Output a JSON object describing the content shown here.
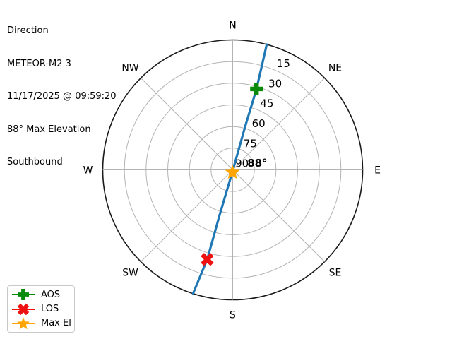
{
  "header": {
    "title": "Direction",
    "satellite": "METEOR-M2 3",
    "timestamp": "11/17/2025 @ 09:59:20",
    "max_elevation": "88° Max Elevation",
    "direction": "Southbound"
  },
  "chart_data": {
    "type": "polar_track",
    "title": "Direction",
    "compass_labels": [
      "N",
      "NE",
      "E",
      "SE",
      "S",
      "SW",
      "W",
      "NW"
    ],
    "elevation_rings_deg": [
      15,
      30,
      45,
      60,
      75
    ],
    "elevation_tick_values": [
      15,
      30,
      45,
      60,
      75,
      90
    ],
    "elevation_tick_labels": [
      "15",
      "30",
      "45",
      "60",
      "75",
      "90"
    ],
    "rlabel_azimuth_deg": 22.5,
    "elevation_range": [
      0,
      90
    ],
    "track": {
      "name": "satellite-pass-track",
      "points_az_el": [
        [
          15.2,
          0
        ],
        [
          16.4,
          31.6
        ],
        [
          16.0,
          58.5
        ],
        [
          185.0,
          89.0
        ],
        [
          196.2,
          57.7
        ],
        [
          195.9,
          25.5
        ],
        [
          197.8,
          0
        ]
      ]
    },
    "markers": [
      {
        "id": "aos",
        "label": "AOS",
        "shape": "plus",
        "az": 16.4,
        "el": 31.6
      },
      {
        "id": "los",
        "label": "LOS",
        "shape": "x",
        "az": 195.9,
        "el": 25.5
      },
      {
        "id": "max_el",
        "label": "Max El",
        "shape": "star",
        "az": 185.0,
        "el": 88.2
      }
    ],
    "annotation": {
      "text": "88°"
    },
    "colors": {
      "track": "#1f77b4",
      "aos": "#0a8a0a",
      "los": "#ee1111",
      "max_el": "#ffa500",
      "grid": "#b3b3b3",
      "outline": "#1a1a1a",
      "text": "#000000"
    }
  },
  "legend": {
    "items": [
      {
        "label": "AOS",
        "shape": "plus",
        "color": "#0a8a0a"
      },
      {
        "label": "LOS",
        "shape": "x",
        "color": "#ee1111"
      },
      {
        "label": "Max El",
        "shape": "star",
        "color": "#ffa500"
      }
    ]
  }
}
